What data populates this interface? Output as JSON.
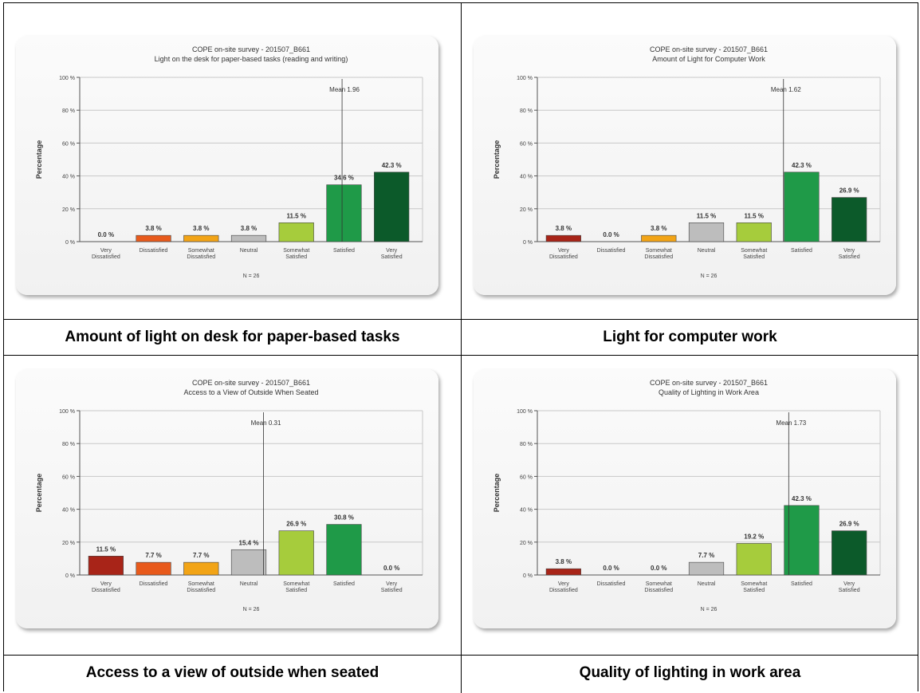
{
  "captions": [
    "Amount of light on desk for paper-based tasks",
    "Light for computer work",
    "Access to a view of outside when seated",
    "Quality of lighting in work area"
  ],
  "colors": [
    "#a82418",
    "#e85a1c",
    "#f2a416",
    "#bdbdbd",
    "#a6cc3c",
    "#1f9a48",
    "#0c5a2a"
  ],
  "chart_data": [
    {
      "type": "bar",
      "title": "COPE on-site survey - 201507_B661",
      "subtitle": "Light on the desk for paper-based tasks (reading and writing)",
      "categories": [
        [
          "Very",
          "Dissatisfied"
        ],
        [
          "Dissatisfied"
        ],
        [
          "Somewhat",
          "Dissatisfied"
        ],
        [
          "Neutral"
        ],
        [
          "Somewhat",
          "Satisfied"
        ],
        [
          "Satisfied"
        ],
        [
          "Very",
          "Satisfied"
        ]
      ],
      "values": [
        0.0,
        3.8,
        3.8,
        3.8,
        11.5,
        34.6,
        42.3
      ],
      "value_labels": [
        "0.0 %",
        "3.8 %",
        "3.8 %",
        "3.8 %",
        "11.5 %",
        "34.6 %",
        "42.3 %"
      ],
      "ylabel": "Percentage",
      "xlabel": "N = 26",
      "ylim": [
        0,
        100
      ],
      "yticks": [
        "0 %",
        "20 %",
        "40 %",
        "60 %",
        "80 %",
        "100 %"
      ],
      "mean": 1.96,
      "mean_label": "Mean 1.96",
      "grid": true
    },
    {
      "type": "bar",
      "title": "COPE on-site survey - 201507_B661",
      "subtitle": "Amount of Light for Computer Work",
      "categories": [
        [
          "Very",
          "Dissatisfied"
        ],
        [
          "Dissatisfied"
        ],
        [
          "Somewhat",
          "Dissatisfied"
        ],
        [
          "Neutral"
        ],
        [
          "Somewhat",
          "Satisfied"
        ],
        [
          "Satisfied"
        ],
        [
          "Very",
          "Satisfied"
        ]
      ],
      "values": [
        3.8,
        0.0,
        3.8,
        11.5,
        11.5,
        42.3,
        26.9
      ],
      "value_labels": [
        "3.8 %",
        "0.0 %",
        "3.8 %",
        "11.5 %",
        "11.5 %",
        "42.3 %",
        "26.9 %"
      ],
      "ylabel": "Percentage",
      "xlabel": "N = 26",
      "ylim": [
        0,
        100
      ],
      "yticks": [
        "0 %",
        "20 %",
        "40 %",
        "60 %",
        "80 %",
        "100 %"
      ],
      "mean": 1.62,
      "mean_label": "Mean 1.62",
      "grid": true
    },
    {
      "type": "bar",
      "title": "COPE on-site survey - 201507_B661",
      "subtitle": "Access to a View of Outside When Seated",
      "categories": [
        [
          "Very",
          "Dissatisfied"
        ],
        [
          "Dissatisfied"
        ],
        [
          "Somewhat",
          "Dissatisfied"
        ],
        [
          "Neutral"
        ],
        [
          "Somewhat",
          "Satisfied"
        ],
        [
          "Satisfied"
        ],
        [
          "Very",
          "Satisfied"
        ]
      ],
      "values": [
        11.5,
        7.7,
        7.7,
        15.4,
        26.9,
        30.8,
        0.0
      ],
      "value_labels": [
        "11.5 %",
        "7.7 %",
        "7.7 %",
        "15.4 %",
        "26.9 %",
        "30.8 %",
        "0.0 %"
      ],
      "ylabel": "Percentage",
      "xlabel": "N = 26",
      "ylim": [
        0,
        100
      ],
      "yticks": [
        "0 %",
        "20 %",
        "40 %",
        "60 %",
        "80 %",
        "100 %"
      ],
      "mean": 0.31,
      "mean_label": "Mean 0.31",
      "grid": true
    },
    {
      "type": "bar",
      "title": "COPE on-site survey - 201507_B661",
      "subtitle": "Quality of Lighting in Work Area",
      "categories": [
        [
          "Very",
          "Dissatisfied"
        ],
        [
          "Dissatisfied"
        ],
        [
          "Somewhat",
          "Dissatisfied"
        ],
        [
          "Neutral"
        ],
        [
          "Somewhat",
          "Satisfied"
        ],
        [
          "Satisfied"
        ],
        [
          "Very",
          "Satisfied"
        ]
      ],
      "values": [
        3.8,
        0.0,
        0.0,
        7.7,
        19.2,
        42.3,
        26.9
      ],
      "value_labels": [
        "3.8 %",
        "0.0 %",
        "0.0 %",
        "7.7 %",
        "19.2 %",
        "42.3 %",
        "26.9 %"
      ],
      "ylabel": "Percentage",
      "xlabel": "N = 26",
      "ylim": [
        0,
        100
      ],
      "yticks": [
        "0 %",
        "20 %",
        "40 %",
        "60 %",
        "80 %",
        "100 %"
      ],
      "mean": 1.73,
      "mean_label": "Mean 1.73",
      "grid": true
    }
  ]
}
